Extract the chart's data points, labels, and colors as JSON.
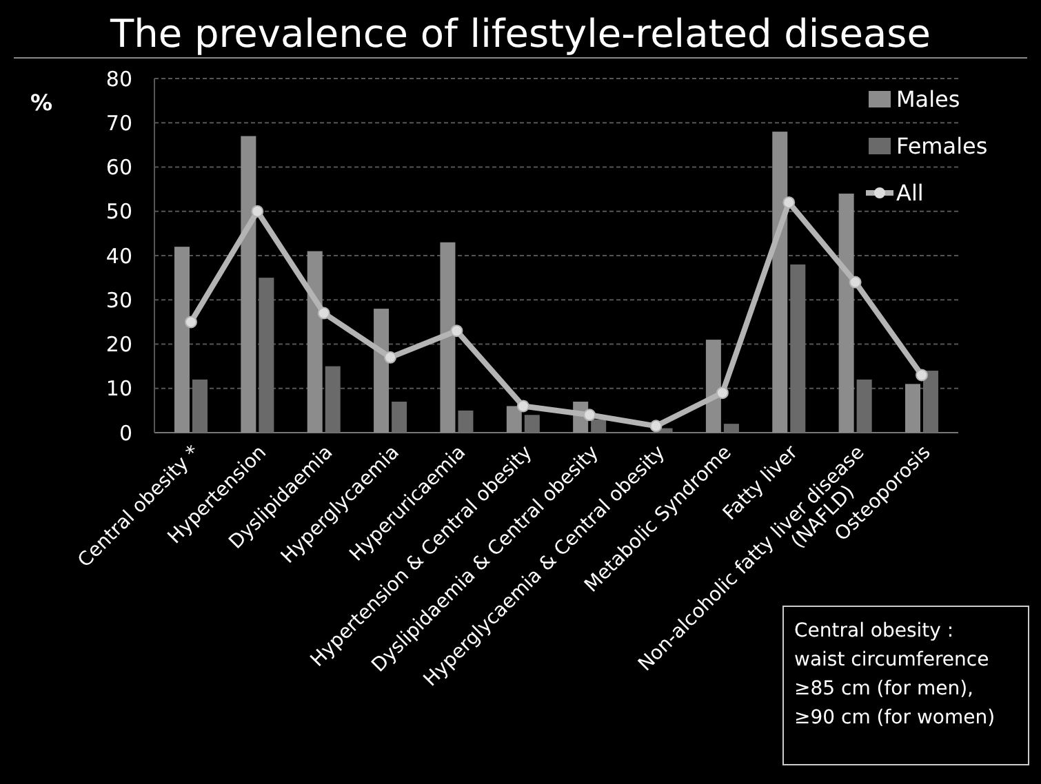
{
  "chart_data": {
    "type": "bar",
    "title": "The prevalence of lifestyle-related disease",
    "ylabel": "%",
    "categories": [
      "Central obesity *",
      "Hypertension",
      "Dyslipidaemia",
      "Hyperglycaemia",
      "Hyperuricaemia",
      "Hypertension & Central obesity",
      "Dyslipidaemia & Central obesity",
      "Hyperglycaemia & Central obesity",
      "Metabolic Syndrome",
      "Fatty liver",
      "Non-alcoholic fatty liver disease\n(NAFLD)",
      "Osteoporosis"
    ],
    "series": [
      {
        "name": "Males",
        "color": "#8c8c8c",
        "values": [
          42,
          67,
          41,
          28,
          43,
          6,
          7,
          null,
          21,
          68,
          54,
          11
        ]
      },
      {
        "name": "Females",
        "color": "#6a6a6a",
        "values": [
          12,
          35,
          15,
          7,
          5,
          4,
          3,
          1,
          2,
          38,
          12,
          14
        ]
      },
      {
        "name": "All",
        "type": "line",
        "color": "#b4b4b4",
        "marker": "circle",
        "values": [
          25,
          50,
          27,
          17,
          23,
          6,
          4,
          1.5,
          9,
          52,
          34,
          13
        ]
      }
    ],
    "ylim": [
      0,
      80
    ],
    "yticks": [
      0,
      10,
      20,
      30,
      40,
      50,
      60,
      70,
      80
    ],
    "grid": "y",
    "legend": "top right",
    "annotations": [
      "Central obesity :\nwaist circumference\n≥85 cm (for men),\n≥90 cm (for women)"
    ]
  }
}
